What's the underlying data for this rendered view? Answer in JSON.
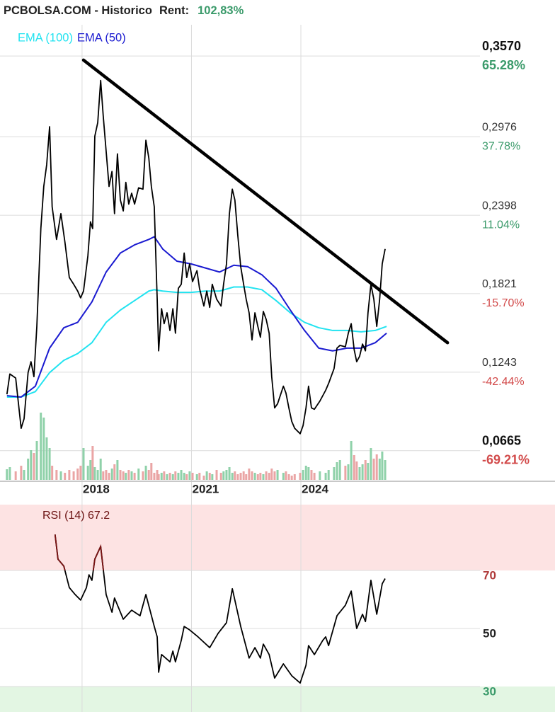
{
  "header": {
    "title": "PCBOLSA.COM - Historico",
    "rent_label": "Rent:",
    "rent": "102,83%"
  },
  "chart_data": [
    {
      "type": "line",
      "xlim": [
        2015.75,
        2028.91
      ],
      "xticks": [
        2018,
        2021,
        2024
      ],
      "ylim": [
        0.044,
        0.38
      ],
      "yticks": [
        {
          "value": 0.357,
          "label": "0,3570"
        },
        {
          "value": 0.2976,
          "label": "0,2976"
        },
        {
          "value": 0.2398,
          "label": "0,2398"
        },
        {
          "value": 0.1821,
          "label": "0,1821"
        },
        {
          "value": 0.1243,
          "label": "0,1243"
        },
        {
          "value": 0.0665,
          "label": "0,0665"
        }
      ],
      "y2lim": [
        -79.63,
        75.93
      ],
      "y2ticks": [
        {
          "value": 65.28,
          "label": "65.28%"
        },
        {
          "value": 37.78,
          "label": "37.78%"
        },
        {
          "value": 11.04,
          "label": "11.04%"
        },
        {
          "value": -15.7,
          "label": "-15.70%"
        },
        {
          "value": -42.44,
          "label": "-42.44%"
        },
        {
          "value": -69.21,
          "label": "-69.21%"
        }
      ],
      "grid": true,
      "legend": "top-left",
      "series": [
        {
          "color": "#000000",
          "x": [
            2015.94,
            2016.02,
            2016.18,
            2016.33,
            2016.41,
            2016.52,
            2016.6,
            2016.68,
            2016.76,
            2016.87,
            2016.95,
            2017.03,
            2017.11,
            2017.18,
            2017.3,
            2017.42,
            2017.53,
            2017.65,
            2017.77,
            2017.88,
            2017.96,
            2018.04,
            2018.16,
            2018.23,
            2018.29,
            2018.35,
            2018.43,
            2018.51,
            2018.58,
            2018.66,
            2018.74,
            2018.82,
            2018.89,
            2018.97,
            2019.05,
            2019.13,
            2019.2,
            2019.28,
            2019.36,
            2019.44,
            2019.55,
            2019.67,
            2019.75,
            2019.83,
            2019.9,
            2019.98,
            2020.06,
            2020.1,
            2020.18,
            2020.25,
            2020.33,
            2020.41,
            2020.49,
            2020.56,
            2020.64,
            2020.72,
            2020.8,
            2020.87,
            2020.95,
            2021.03,
            2021.15,
            2021.22,
            2021.34,
            2021.42,
            2021.5,
            2021.57,
            2021.69,
            2021.81,
            2021.88,
            2021.96,
            2022.04,
            2022.12,
            2022.19,
            2022.27,
            2022.35,
            2022.43,
            2022.5,
            2022.58,
            2022.66,
            2022.74,
            2022.82,
            2022.89,
            2022.97,
            2023.05,
            2023.13,
            2023.2,
            2023.28,
            2023.36,
            2023.52,
            2023.59,
            2023.67,
            2023.75,
            2023.83,
            2023.98,
            2024.06,
            2024.14,
            2024.21,
            2024.29,
            2024.37,
            2024.52,
            2024.68,
            2024.76,
            2024.91,
            2024.99,
            2025.07,
            2025.22,
            2025.3,
            2025.38,
            2025.46,
            2025.53,
            2025.61,
            2025.69,
            2025.77,
            2025.84,
            2025.92,
            2026.0,
            2026.08,
            2026.16,
            2026.23,
            2026.31
          ],
          "values": [
            0.108,
            0.123,
            0.12,
            0.083,
            0.09,
            0.124,
            0.132,
            0.121,
            0.158,
            0.23,
            0.261,
            0.277,
            0.305,
            0.246,
            0.222,
            0.241,
            0.22,
            0.194,
            0.189,
            0.184,
            0.179,
            0.184,
            0.21,
            0.235,
            0.23,
            0.298,
            0.308,
            0.339,
            0.313,
            0.287,
            0.261,
            0.272,
            0.241,
            0.285,
            0.251,
            0.243,
            0.264,
            0.248,
            0.256,
            0.248,
            0.26,
            0.259,
            0.295,
            0.282,
            0.261,
            0.246,
            0.178,
            0.14,
            0.171,
            0.16,
            0.168,
            0.155,
            0.171,
            0.153,
            0.186,
            0.189,
            0.212,
            0.194,
            0.204,
            0.191,
            0.199,
            0.186,
            0.173,
            0.184,
            0.172,
            0.189,
            0.178,
            0.173,
            0.189,
            0.204,
            0.241,
            0.259,
            0.251,
            0.225,
            0.202,
            0.189,
            0.178,
            0.168,
            0.148,
            0.168,
            0.158,
            0.15,
            0.169,
            0.163,
            0.153,
            0.121,
            0.098,
            0.101,
            0.114,
            0.109,
            0.098,
            0.088,
            0.083,
            0.079,
            0.085,
            0.098,
            0.114,
            0.098,
            0.097,
            0.103,
            0.111,
            0.116,
            0.127,
            0.142,
            0.144,
            0.143,
            0.153,
            0.16,
            0.141,
            0.132,
            0.136,
            0.145,
            0.14,
            0.168,
            0.189,
            0.178,
            0.158,
            0.178,
            0.204,
            0.215
          ]
        },
        {
          "name": "EMA (100)",
          "color": "#22e3f0",
          "x": [
            2015.94,
            2016.33,
            2016.72,
            2017.11,
            2017.5,
            2017.88,
            2018.27,
            2018.66,
            2019.05,
            2019.44,
            2019.83,
            2019.98,
            2020.21,
            2020.6,
            2020.99,
            2021.38,
            2021.77,
            2022.16,
            2022.54,
            2022.93,
            2023.32,
            2023.71,
            2024.1,
            2024.49,
            2024.87,
            2025.26,
            2025.65,
            2026.04,
            2026.35
          ],
          "values": [
            0.106,
            0.106,
            0.11,
            0.124,
            0.133,
            0.138,
            0.146,
            0.161,
            0.17,
            0.177,
            0.184,
            0.185,
            0.184,
            0.183,
            0.183,
            0.184,
            0.184,
            0.187,
            0.187,
            0.185,
            0.177,
            0.168,
            0.161,
            0.157,
            0.155,
            0.155,
            0.154,
            0.155,
            0.158
          ]
        },
        {
          "name": "EMA (50)",
          "color": "#1a1ad0",
          "x": [
            2015.94,
            2016.33,
            2016.72,
            2017.11,
            2017.5,
            2017.88,
            2018.27,
            2018.66,
            2019.05,
            2019.44,
            2019.83,
            2019.98,
            2020.21,
            2020.6,
            2020.99,
            2021.38,
            2021.77,
            2022.16,
            2022.54,
            2022.93,
            2023.32,
            2023.71,
            2024.1,
            2024.49,
            2024.87,
            2025.26,
            2025.65,
            2026.04,
            2026.35
          ],
          "values": [
            0.107,
            0.106,
            0.114,
            0.142,
            0.157,
            0.161,
            0.176,
            0.198,
            0.212,
            0.218,
            0.222,
            0.224,
            0.215,
            0.206,
            0.204,
            0.201,
            0.198,
            0.203,
            0.202,
            0.196,
            0.186,
            0.17,
            0.155,
            0.142,
            0.14,
            0.142,
            0.142,
            0.146,
            0.153
          ]
        }
      ],
      "volume": {
        "ylim": [
          0,
          100
        ],
        "up_color": "#8fd1a9",
        "down_color": "#eaa5a5",
        "values": [
          15,
          18,
          12,
          20,
          14,
          30,
          42,
          38,
          55,
          95,
          88,
          60,
          45,
          20,
          14,
          12,
          10,
          14,
          12,
          16,
          20,
          45,
          20,
          28,
          48,
          18,
          14,
          30,
          12,
          14,
          10,
          16,
          22,
          28,
          14,
          12,
          10,
          14,
          12,
          10,
          16,
          12,
          20,
          14,
          24,
          10,
          14,
          8,
          10,
          12,
          8,
          10,
          8,
          12,
          10,
          14,
          10,
          8,
          12,
          10,
          8,
          10,
          6,
          12,
          10,
          8,
          14,
          10,
          12,
          14,
          18,
          10,
          12,
          8,
          10,
          12,
          8,
          16,
          12,
          10,
          8,
          10,
          8,
          12,
          10,
          16,
          12,
          14,
          10,
          12,
          8,
          6,
          8,
          10,
          14,
          20,
          18,
          14,
          10,
          12,
          10,
          14,
          18,
          25,
          28,
          20,
          22,
          55,
          35,
          26,
          18,
          22,
          28,
          24,
          45,
          30,
          36,
          30,
          40,
          28
        ]
      },
      "trendline": {
        "color": "#000000",
        "x": [
          2018.04,
          2028.02
        ],
        "values": [
          0.354,
          0.146
        ]
      }
    },
    {
      "type": "line",
      "title": "RSI (14) 67.2",
      "xlim": [
        2015.75,
        2028.91
      ],
      "ylim": [
        21.2,
        92.7
      ],
      "yticks": [
        70,
        50,
        30
      ],
      "grid": true,
      "overbought_color": "#7a1212",
      "series": [
        {
          "color": "#000000",
          "x": [
            2017.26,
            2017.34,
            2017.5,
            2017.65,
            2017.81,
            2017.96,
            2018.12,
            2018.19,
            2018.27,
            2018.35,
            2018.51,
            2018.66,
            2018.82,
            2018.89,
            2019.13,
            2019.36,
            2019.59,
            2019.75,
            2019.98,
            2020.06,
            2020.1,
            2020.18,
            2020.41,
            2020.49,
            2020.56,
            2020.72,
            2020.8,
            2020.95,
            2021.18,
            2021.5,
            2021.73,
            2021.96,
            2022.12,
            2022.35,
            2022.58,
            2022.74,
            2022.89,
            2022.97,
            2023.13,
            2023.28,
            2023.52,
            2023.75,
            2023.98,
            2024.14,
            2024.21,
            2024.37,
            2024.6,
            2024.68,
            2024.76,
            2024.99,
            2025.22,
            2025.38,
            2025.53,
            2025.69,
            2025.77,
            2025.92,
            2026.08,
            2026.23,
            2026.31
          ],
          "values": [
            82.4,
            73.9,
            71.5,
            64.1,
            61.7,
            59.8,
            64.1,
            68.5,
            66.6,
            73.9,
            78.3,
            61.7,
            55.6,
            60.5,
            53.2,
            56.3,
            54.4,
            61.7,
            50.7,
            47.1,
            34.9,
            41.0,
            38.5,
            42.2,
            38.5,
            45.9,
            50.7,
            49.5,
            47.1,
            43.4,
            48.3,
            52.0,
            63.7,
            50.7,
            39.8,
            43.4,
            39.8,
            44.6,
            41.0,
            32.9,
            37.8,
            33.7,
            31.2,
            37.3,
            44.1,
            41.0,
            45.9,
            47.1,
            44.1,
            54.4,
            58.0,
            62.9,
            50.0,
            54.9,
            52.4,
            66.6,
            54.9,
            65.4,
            67.2
          ]
        }
      ]
    }
  ]
}
